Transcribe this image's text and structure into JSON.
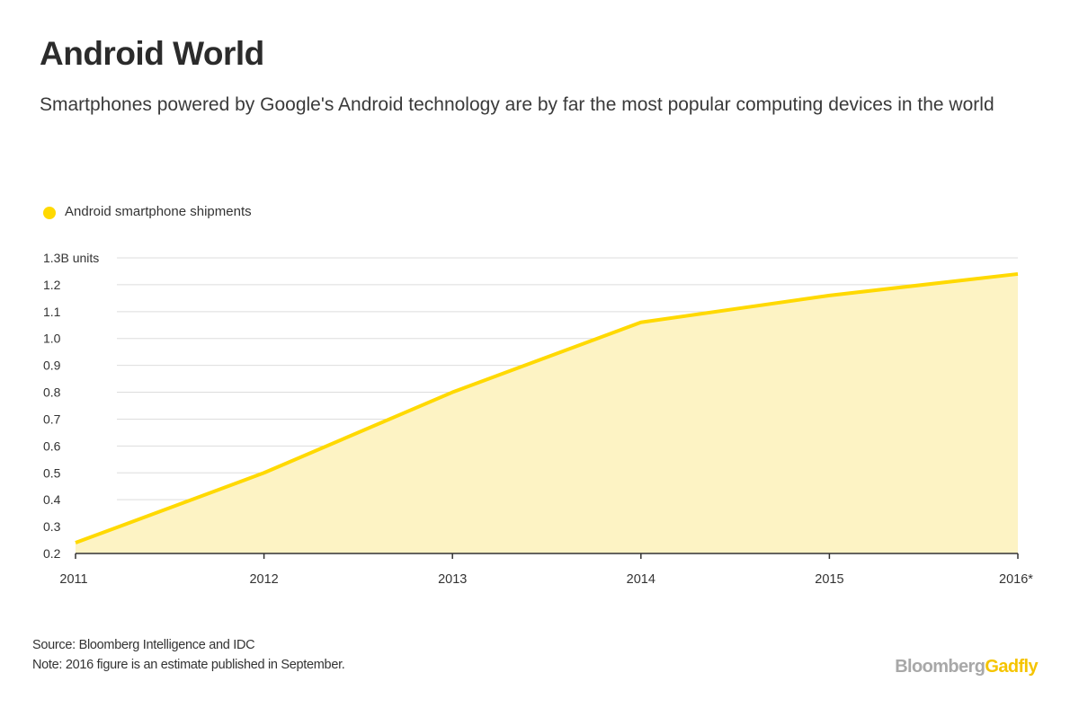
{
  "header": {
    "title": "Android World",
    "subtitle": "Smartphones powered by Google's Android technology are by far the most popular computing devices in the world"
  },
  "colors": {
    "series_line": "#ffd900",
    "series_fill": "#fdf3c4",
    "gridline": "#dddddd",
    "axis": "#333333"
  },
  "chart_data": {
    "type": "area",
    "categories": [
      "2011",
      "2012",
      "2013",
      "2014",
      "2015",
      "2016*"
    ],
    "series": [
      {
        "name": "Android smartphone shipments",
        "values": [
          0.24,
          0.5,
          0.8,
          1.06,
          1.16,
          1.24
        ]
      }
    ],
    "ylim": [
      0.2,
      1.3
    ],
    "yticks": [
      "0.2",
      "0.3",
      "0.4",
      "0.5",
      "0.6",
      "0.7",
      "0.8",
      "0.9",
      "1.0",
      "1.1",
      "1.2",
      "1.3B units"
    ],
    "ytick_values": [
      0.2,
      0.3,
      0.4,
      0.5,
      0.6,
      0.7,
      0.8,
      0.9,
      1.0,
      1.1,
      1.2,
      1.3
    ],
    "legend_position": "top-left",
    "grid": true
  },
  "footer": {
    "source": "Source: Bloomberg Intelligence and IDC",
    "note": "Note: 2016 figure is an estimate published in September."
  },
  "brand": {
    "part1": "Bloomberg",
    "part2": "Gadfly"
  }
}
